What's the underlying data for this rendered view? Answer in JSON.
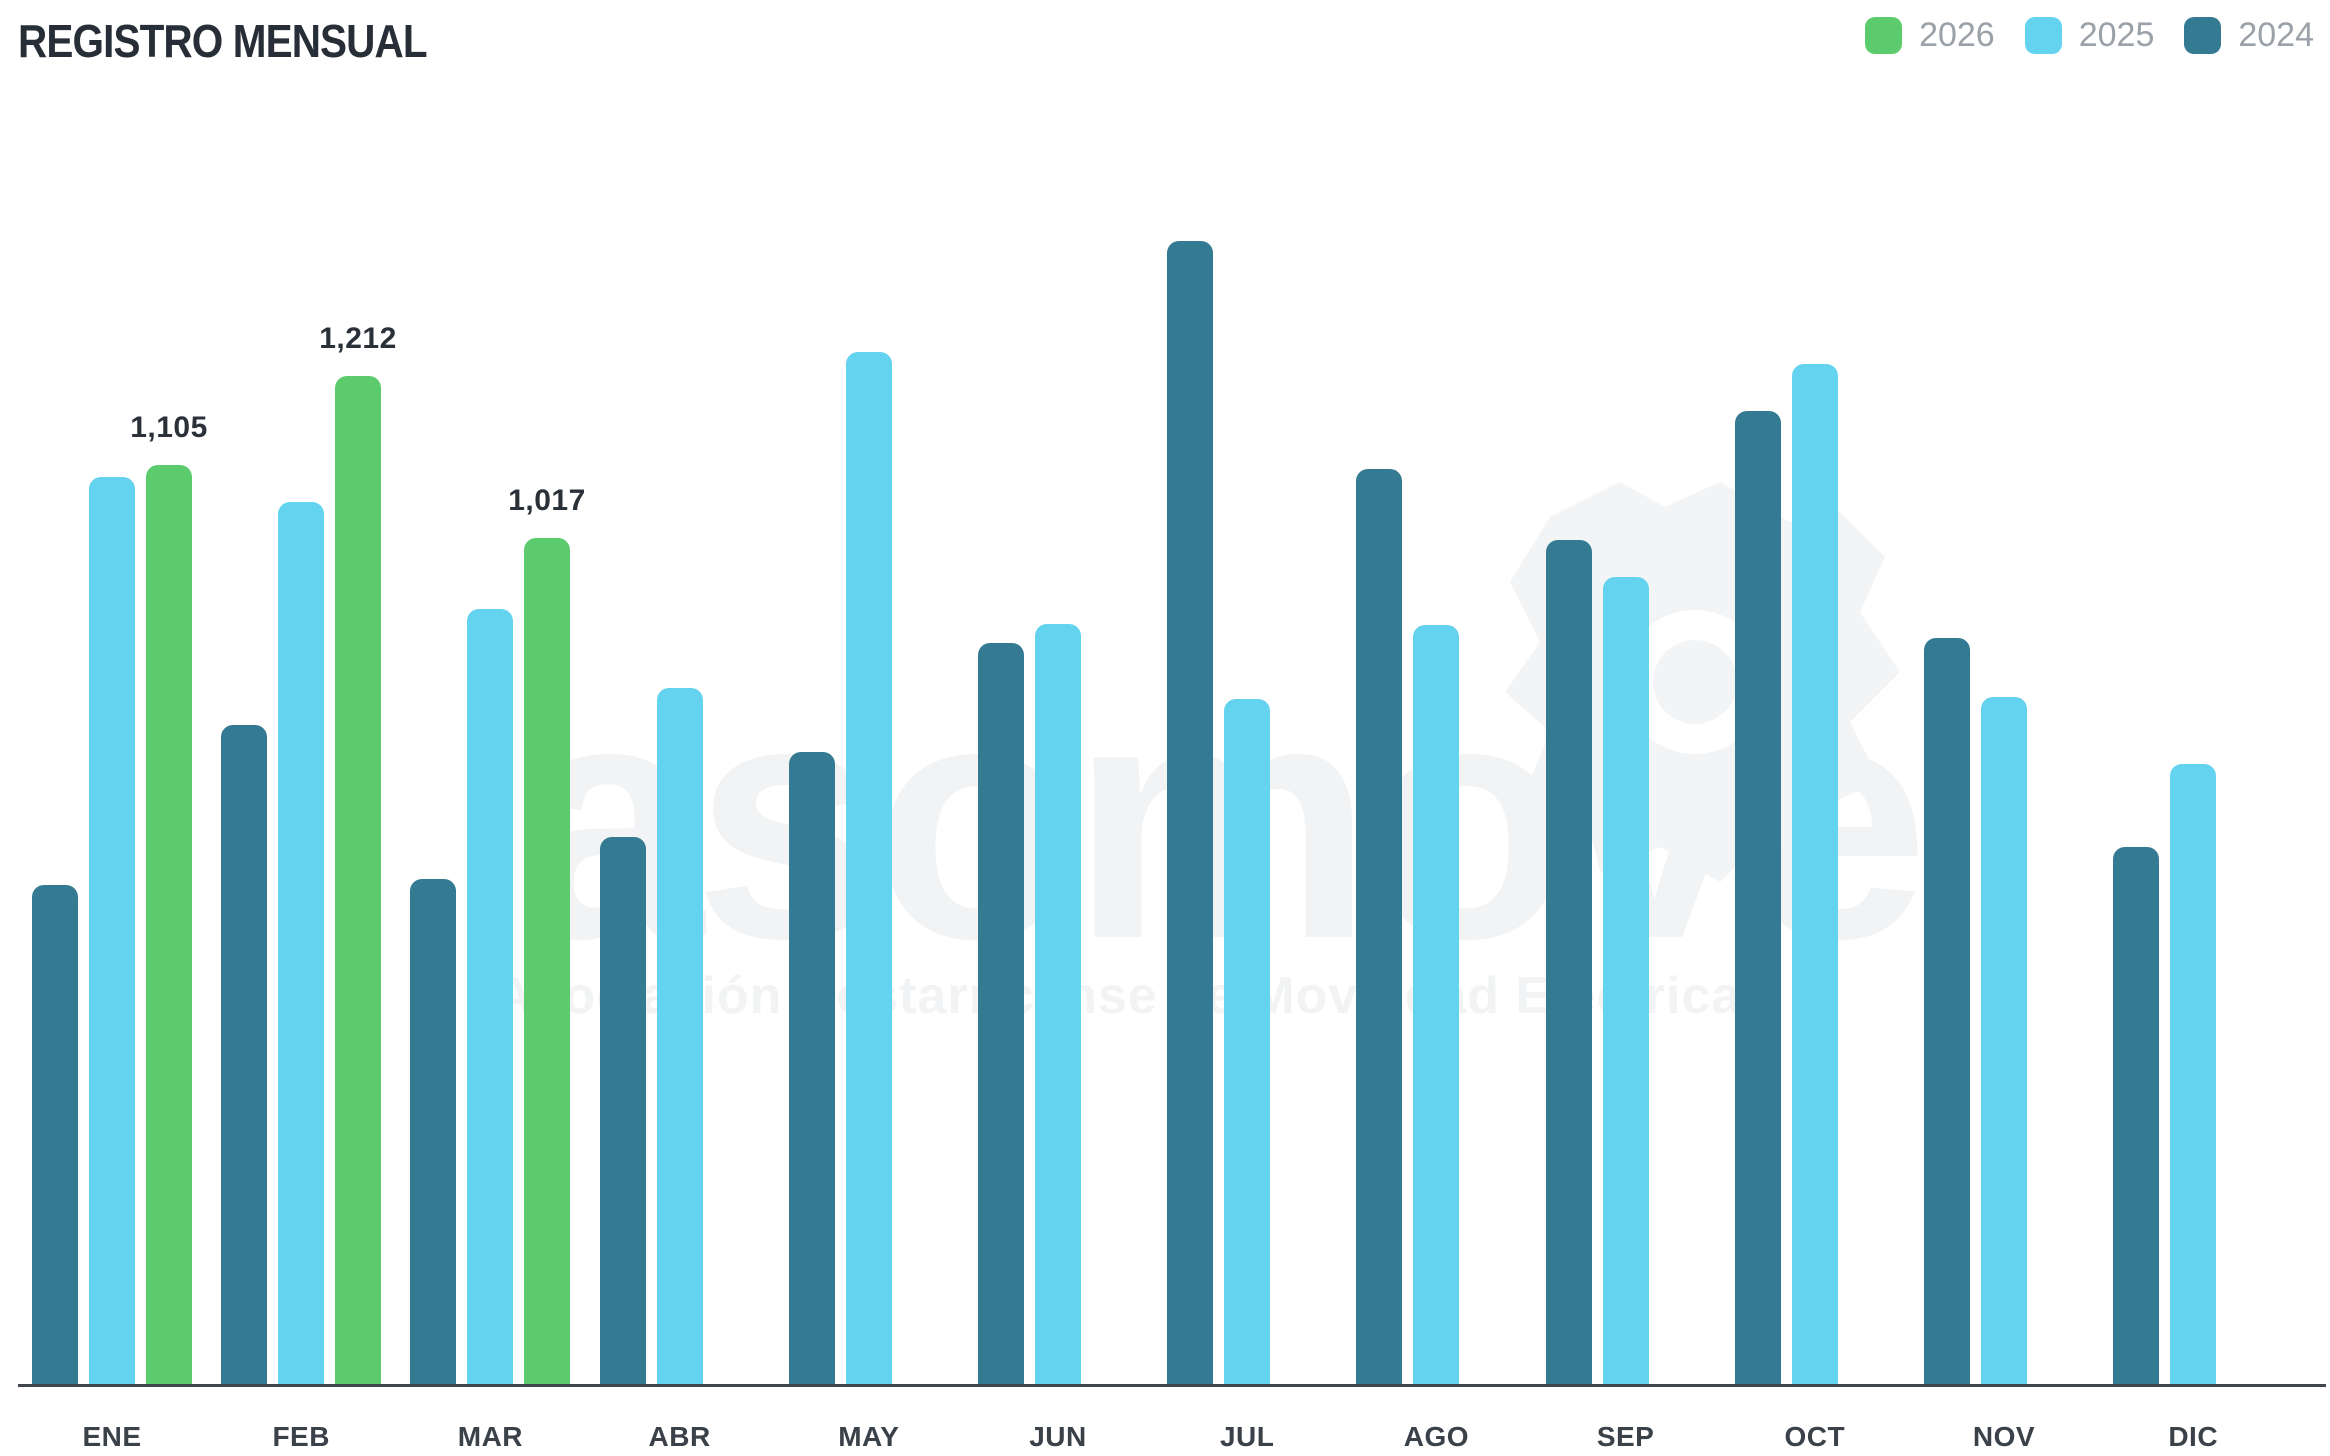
{
  "header": {
    "title": "REGISTRO MENSUAL"
  },
  "legend": [
    {
      "label": "2026",
      "color": "#5CCB6E"
    },
    {
      "label": "2025",
      "color": "#63D3F0"
    },
    {
      "label": "2024",
      "color": "#337A92"
    }
  ],
  "watermark": {
    "brand": "asomove",
    "subtitle": "Asociación Costarricense de Movilidad Eléctrica"
  },
  "chart_data": {
    "type": "bar",
    "title": "REGISTRO MENSUAL",
    "categories": [
      "ENE",
      "FEB",
      "MAR",
      "ABR",
      "MAY",
      "JUN",
      "JUL",
      "AGO",
      "SEP",
      "OCT",
      "NOV",
      "DIC"
    ],
    "series": [
      {
        "name": "2026",
        "color": "#5CCB6E",
        "values": [
          1105,
          1212,
          1017,
          null,
          null,
          null,
          null,
          null,
          null,
          null,
          null,
          null
        ],
        "labels": [
          "1,105",
          "1,212",
          "1,017",
          null,
          null,
          null,
          null,
          null,
          null,
          null,
          null,
          null
        ]
      },
      {
        "name": "2025",
        "color": "#63D3F0",
        "values": [
          1091,
          1061,
          932,
          838,
          1240,
          914,
          824,
          913,
          971,
          1226,
          827,
          746
        ],
        "labels": null
      },
      {
        "name": "2024",
        "color": "#337A92",
        "values": [
          601,
          793,
          608,
          659,
          761,
          892,
          1374,
          1100,
          1015,
          1170,
          897,
          647
        ],
        "labels": null
      }
    ],
    "ylim": [
      0,
      1450
    ],
    "xlabel": "",
    "ylabel": "",
    "grid": false,
    "legend_position": "top-right",
    "axis_color": "#42474d",
    "label_color": "#2b3138"
  }
}
